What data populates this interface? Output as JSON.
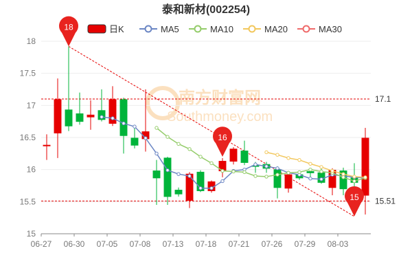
{
  "chart_data": {
    "type": "candlestick",
    "title": "泰和新材(002254)",
    "legend": {
      "placement": "top",
      "items": [
        {
          "key": "k",
          "label": "日K",
          "color": "#e60000"
        },
        {
          "key": "ma5",
          "label": "MA5",
          "color": "#6b86c4"
        },
        {
          "key": "ma10",
          "label": "MA10",
          "color": "#94cc6a"
        },
        {
          "key": "ma20",
          "label": "MA20",
          "color": "#f2c75c"
        },
        {
          "key": "ma30",
          "label": "MA30",
          "color": "#ef6a6a"
        }
      ]
    },
    "watermark": {
      "line1": "南方财富网",
      "line2": "Southmoney.com"
    },
    "yaxis": {
      "min": 15,
      "max": 18,
      "ticks": [
        "15",
        "15.5",
        "16",
        "16.5",
        "17",
        "17.5",
        "18"
      ],
      "tick_values": [
        15,
        15.5,
        16,
        16.5,
        17,
        17.5,
        18
      ]
    },
    "xaxis": {
      "labels": [
        "06-27",
        "06-30",
        "07-05",
        "07-08",
        "07-13",
        "07-18",
        "07-21",
        "07-26",
        "07-29",
        "08-03"
      ],
      "label_indices": [
        0,
        3,
        6,
        9,
        12,
        15,
        18,
        21,
        24,
        27
      ]
    },
    "candles": [
      {
        "o": 16.38,
        "c": 16.38,
        "h": 16.55,
        "l": 16.15
      },
      {
        "o": 16.57,
        "c": 17.09,
        "h": 17.42,
        "l": 16.18
      },
      {
        "o": 16.93,
        "c": 16.68,
        "h": 17.92,
        "l": 16.6
      },
      {
        "o": 16.87,
        "c": 16.75,
        "h": 17.2,
        "l": 16.7
      },
      {
        "o": 16.82,
        "c": 16.85,
        "h": 17.08,
        "l": 16.62
      },
      {
        "o": 16.92,
        "c": 16.78,
        "h": 17.25,
        "l": 16.75
      },
      {
        "o": 16.72,
        "c": 17.09,
        "h": 17.3,
        "l": 16.68
      },
      {
        "o": 17.09,
        "c": 16.53,
        "h": 17.12,
        "l": 16.25
      },
      {
        "o": 16.49,
        "c": 16.38,
        "h": 16.65,
        "l": 16.33
      },
      {
        "o": 16.48,
        "c": 16.59,
        "h": 17.25,
        "l": 16.28
      },
      {
        "o": 15.98,
        "c": 15.87,
        "h": 16.15,
        "l": 15.45
      },
      {
        "o": 16.18,
        "c": 15.58,
        "h": 16.2,
        "l": 15.45
      },
      {
        "o": 15.68,
        "c": 15.62,
        "h": 15.72,
        "l": 15.58
      },
      {
        "o": 15.52,
        "c": 15.93,
        "h": 15.96,
        "l": 15.4
      },
      {
        "o": 15.96,
        "c": 15.67,
        "h": 15.99,
        "l": 15.65
      },
      {
        "o": 15.67,
        "c": 15.81,
        "h": 15.83,
        "l": 15.64
      },
      {
        "o": 15.98,
        "c": 16.13,
        "h": 16.18,
        "l": 15.88
      },
      {
        "o": 16.13,
        "c": 16.32,
        "h": 16.35,
        "l": 16.08
      },
      {
        "o": 16.29,
        "c": 16.11,
        "h": 16.45,
        "l": 16.07
      },
      {
        "o": 16.06,
        "c": 16.05,
        "h": 16.12,
        "l": 15.95
      },
      {
        "o": 16.08,
        "c": 16.02,
        "h": 16.12,
        "l": 15.95
      },
      {
        "o": 16.0,
        "c": 15.72,
        "h": 16.05,
        "l": 15.55
      },
      {
        "o": 15.71,
        "c": 15.92,
        "h": 15.97,
        "l": 15.64
      },
      {
        "o": 15.92,
        "c": 15.87,
        "h": 15.96,
        "l": 15.84
      },
      {
        "o": 15.97,
        "c": 15.95,
        "h": 16.0,
        "l": 15.88
      },
      {
        "o": 15.95,
        "c": 15.8,
        "h": 16.04,
        "l": 15.78
      },
      {
        "o": 15.72,
        "c": 15.99,
        "h": 16.02,
        "l": 15.6
      },
      {
        "o": 15.98,
        "c": 15.7,
        "h": 16.03,
        "l": 15.6
      },
      {
        "o": 15.87,
        "c": 15.8,
        "h": 16.1,
        "l": 15.72
      },
      {
        "o": 15.6,
        "c": 16.49,
        "h": 16.65,
        "l": 15.3
      }
    ],
    "series": [
      {
        "key": "ma5",
        "name": "MA5",
        "start": 5,
        "values": [
          16.82,
          16.8,
          16.72,
          16.67,
          16.49,
          16.25,
          15.99,
          15.93,
          15.9,
          15.71,
          15.71,
          15.82,
          15.98,
          16.0,
          16.08,
          16.05,
          16.02,
          15.95,
          15.92,
          15.86,
          15.85,
          15.92,
          15.9,
          15.88,
          15.87
        ]
      },
      {
        "key": "ma10",
        "name": "MA10",
        "start": 10,
        "values": [
          16.65,
          16.51,
          16.4,
          16.32,
          16.2,
          16.1,
          15.98,
          15.97,
          15.96,
          15.9,
          15.89,
          15.92,
          15.95,
          15.96,
          16.0,
          15.97,
          15.95,
          15.88,
          15.82,
          15.87
        ]
      },
      {
        "key": "ma20",
        "name": "MA20",
        "start": 20,
        "values": [
          16.27,
          16.23,
          16.18,
          16.15,
          16.09,
          16.04,
          15.98,
          15.93,
          15.89,
          15.88
        ]
      }
    ],
    "reference_lines": [
      {
        "label": "17.1",
        "value": 17.1
      },
      {
        "label": "15.51",
        "value": 15.51
      }
    ],
    "trend_line": {
      "from": {
        "index": 2,
        "value": 17.92
      },
      "to": {
        "index": 28,
        "value": 15.27
      }
    },
    "markers": [
      {
        "label": "18",
        "index": 2,
        "value": 17.92
      },
      {
        "label": "16",
        "index": 16,
        "value": 16.2
      },
      {
        "label": "15",
        "index": 28,
        "value": 15.27
      }
    ],
    "colors": {
      "up": "#e60000",
      "down": "#00b43a",
      "axis": "#888888",
      "grid": "#eeeeee",
      "ref": "#e60000",
      "marker": "#e8231f"
    }
  }
}
